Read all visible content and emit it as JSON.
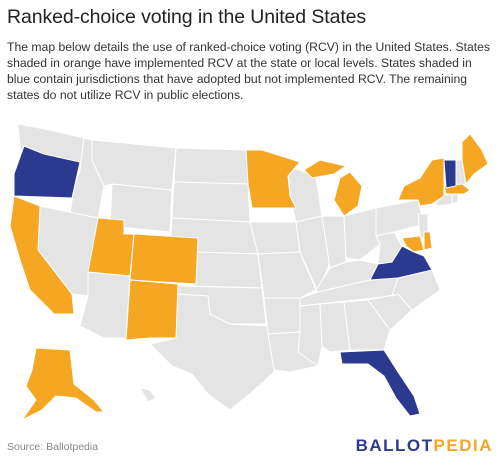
{
  "title": "Ranked-choice voting in the United States",
  "description": "The map below details the use of ranked-choice voting (RCV) in the United States. States shaded in orange have implemented RCV at the state or local levels. States shaded in blue contain jurisdictions that have adopted but not implemented RCV. The remaining states do not utilize RCV in public elections.",
  "source": "Source: Ballotpedia",
  "logo": {
    "part1": "BALLOT",
    "part2": "PEDIA"
  },
  "colors": {
    "implemented": "#f5a623",
    "adopted_not_implemented": "#2b3a8f",
    "none": "#e4e4e4",
    "border": "#ffffff"
  },
  "categories": {
    "implemented": [
      "Alaska",
      "California",
      "Utah",
      "Colorado",
      "New Mexico",
      "Minnesota",
      "Michigan",
      "New York",
      "Maine",
      "Massachusetts",
      "Maryland",
      "Delaware"
    ],
    "adopted_not_implemented": [
      "Oregon",
      "Virginia",
      "Florida",
      "Vermont"
    ]
  }
}
